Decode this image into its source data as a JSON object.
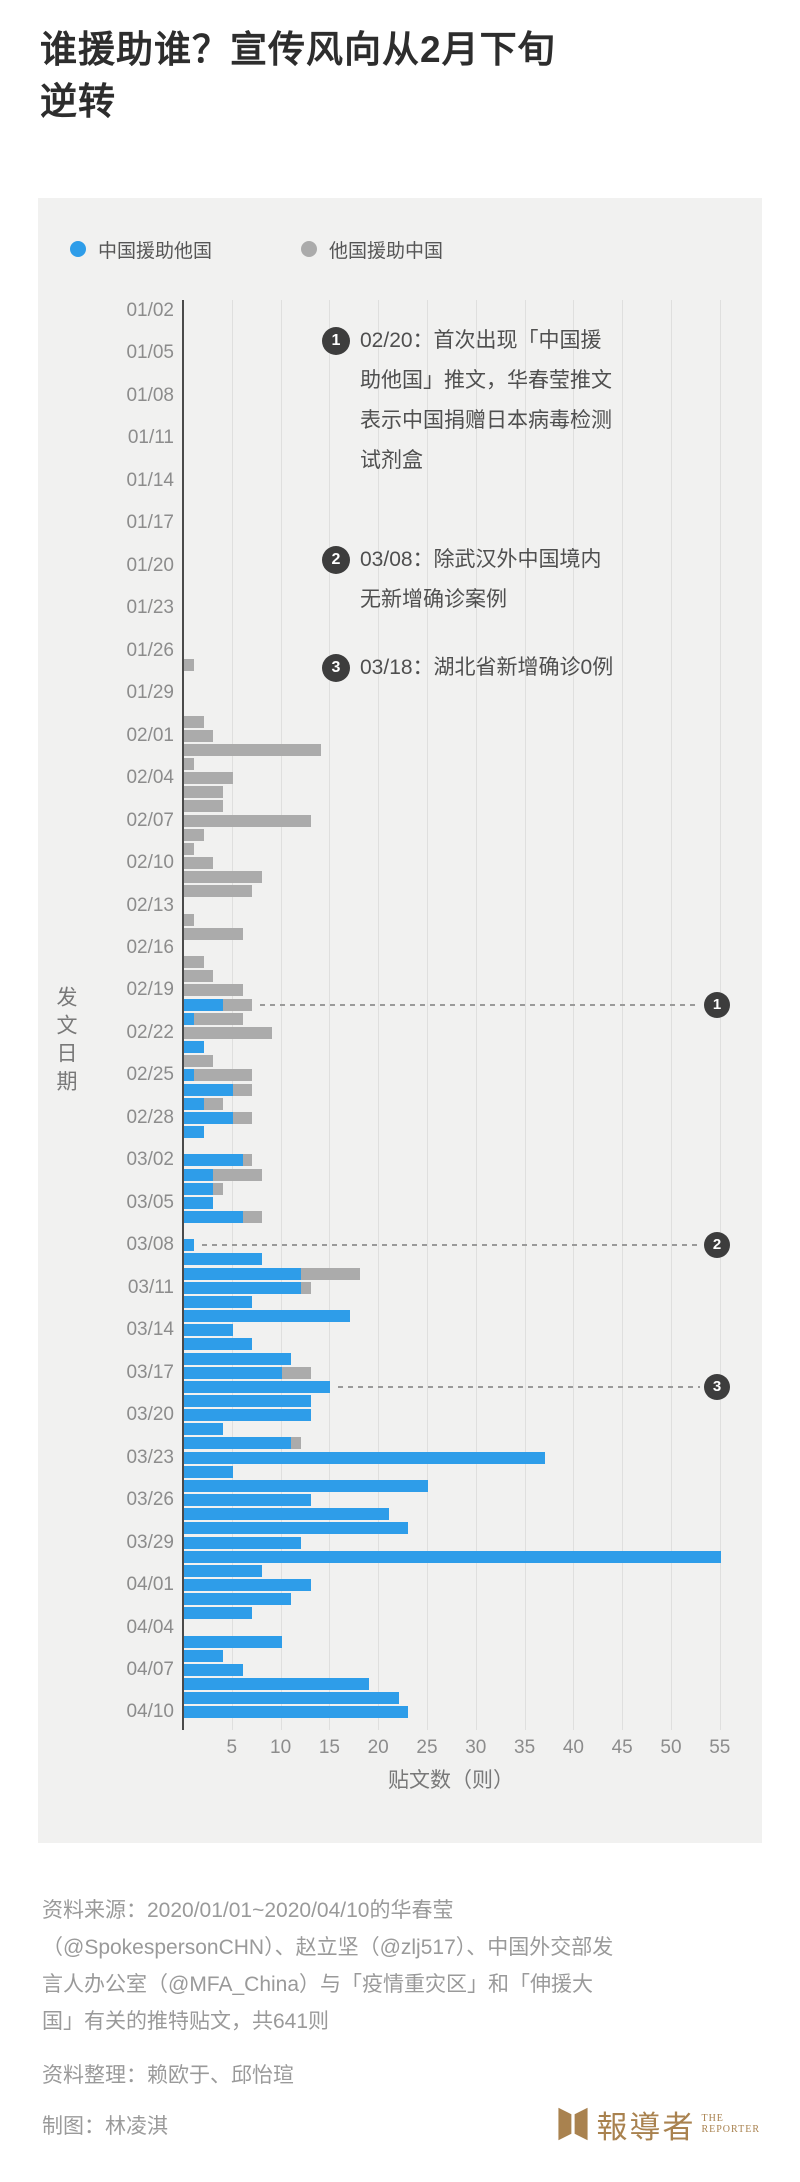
{
  "title_lines": [
    "谁援助谁？宣传风向从2月下旬",
    "逆转"
  ],
  "legend": {
    "items": [
      {
        "label": "中国援助他国",
        "color": "#2e9de9"
      },
      {
        "label": "他国援助中国",
        "color": "#ababab"
      }
    ]
  },
  "chart_data": {
    "type": "bar",
    "orientation": "horizontal",
    "stacked": true,
    "title": "谁援助谁？宣传风向从2月下旬逆转",
    "xlabel": "贴文数（则）",
    "ylabel": "发文日期",
    "xlim": [
      0,
      57
    ],
    "xticks": [
      5,
      10,
      15,
      20,
      25,
      30,
      35,
      40,
      45,
      50,
      55
    ],
    "ytick_every_days": 3,
    "grid": true,
    "total_posts": 641,
    "series": [
      {
        "name": "中国援助他国",
        "color": "#2e9de9"
      },
      {
        "name": "他国援助中国",
        "color": "#ababab"
      }
    ],
    "rows": [
      [
        "01/02",
        0,
        0
      ],
      [
        "01/03",
        0,
        0
      ],
      [
        "01/04",
        0,
        0
      ],
      [
        "01/05",
        0,
        0
      ],
      [
        "01/06",
        0,
        0
      ],
      [
        "01/07",
        0,
        0
      ],
      [
        "01/08",
        0,
        0
      ],
      [
        "01/09",
        0,
        0
      ],
      [
        "01/10",
        0,
        0
      ],
      [
        "01/11",
        0,
        0
      ],
      [
        "01/12",
        0,
        0
      ],
      [
        "01/13",
        0,
        0
      ],
      [
        "01/14",
        0,
        0
      ],
      [
        "01/15",
        0,
        0
      ],
      [
        "01/16",
        0,
        0
      ],
      [
        "01/17",
        0,
        0
      ],
      [
        "01/18",
        0,
        0
      ],
      [
        "01/19",
        0,
        0
      ],
      [
        "01/20",
        0,
        0
      ],
      [
        "01/21",
        0,
        0
      ],
      [
        "01/22",
        0,
        0
      ],
      [
        "01/23",
        0,
        0
      ],
      [
        "01/24",
        0,
        0
      ],
      [
        "01/25",
        0,
        0
      ],
      [
        "01/26",
        0,
        0
      ],
      [
        "01/27",
        0,
        1
      ],
      [
        "01/28",
        0,
        0
      ],
      [
        "01/29",
        0,
        0
      ],
      [
        "01/30",
        0,
        0
      ],
      [
        "01/31",
        0,
        2
      ],
      [
        "02/01",
        0,
        3
      ],
      [
        "02/02",
        0,
        14
      ],
      [
        "02/03",
        0,
        1
      ],
      [
        "02/04",
        0,
        5
      ],
      [
        "02/05",
        0,
        4
      ],
      [
        "02/06",
        0,
        4
      ],
      [
        "02/07",
        0,
        13
      ],
      [
        "02/08",
        0,
        2
      ],
      [
        "02/09",
        0,
        1
      ],
      [
        "02/10",
        0,
        3
      ],
      [
        "02/11",
        0,
        8
      ],
      [
        "02/12",
        0,
        7
      ],
      [
        "02/13",
        0,
        0
      ],
      [
        "02/14",
        0,
        1
      ],
      [
        "02/15",
        0,
        6
      ],
      [
        "02/16",
        0,
        0
      ],
      [
        "02/17",
        0,
        2
      ],
      [
        "02/18",
        0,
        3
      ],
      [
        "02/19",
        0,
        6
      ],
      [
        "02/20",
        4,
        3
      ],
      [
        "02/21",
        1,
        5
      ],
      [
        "02/22",
        0,
        9
      ],
      [
        "02/23",
        2,
        0
      ],
      [
        "02/24",
        0,
        3
      ],
      [
        "02/25",
        1,
        6
      ],
      [
        "02/26",
        5,
        2
      ],
      [
        "02/27",
        2,
        2
      ],
      [
        "02/28",
        5,
        2
      ],
      [
        "02/29",
        2,
        0
      ],
      [
        "03/01",
        0,
        0
      ],
      [
        "03/02",
        6,
        1
      ],
      [
        "03/03",
        3,
        5
      ],
      [
        "03/04",
        3,
        1
      ],
      [
        "03/05",
        3,
        0
      ],
      [
        "03/06",
        6,
        2
      ],
      [
        "03/07",
        0,
        0
      ],
      [
        "03/08",
        1,
        0
      ],
      [
        "03/09",
        8,
        0
      ],
      [
        "03/10",
        12,
        6
      ],
      [
        "03/11",
        12,
        1
      ],
      [
        "03/12",
        7,
        0
      ],
      [
        "03/13",
        17,
        0
      ],
      [
        "03/14",
        5,
        0
      ],
      [
        "03/15",
        7,
        0
      ],
      [
        "03/16",
        11,
        0
      ],
      [
        "03/17",
        10,
        3
      ],
      [
        "03/18",
        15,
        0
      ],
      [
        "03/19",
        13,
        0
      ],
      [
        "03/20",
        13,
        0
      ],
      [
        "03/21",
        4,
        0
      ],
      [
        "03/22",
        11,
        1
      ],
      [
        "03/23",
        37,
        0
      ],
      [
        "03/24",
        5,
        0
      ],
      [
        "03/25",
        25,
        0
      ],
      [
        "03/26",
        13,
        0
      ],
      [
        "03/27",
        21,
        0
      ],
      [
        "03/28",
        23,
        0
      ],
      [
        "03/29",
        12,
        0
      ],
      [
        "03/30",
        55,
        0
      ],
      [
        "03/31",
        8,
        0
      ],
      [
        "04/01",
        13,
        0
      ],
      [
        "04/02",
        11,
        0
      ],
      [
        "04/03",
        7,
        0
      ],
      [
        "04/04",
        0,
        0
      ],
      [
        "04/05",
        10,
        0
      ],
      [
        "04/06",
        4,
        0
      ],
      [
        "04/07",
        6,
        0
      ],
      [
        "04/08",
        19,
        0
      ],
      [
        "04/09",
        22,
        0
      ],
      [
        "04/10",
        23,
        0
      ]
    ]
  },
  "annotations": [
    {
      "num": "1",
      "date": "02/20",
      "text": "02/20：首次出现「中国援\n助他国」推文，华春莹推文\n表示中国捐赠日本病毒检测\n试剂盒"
    },
    {
      "num": "2",
      "date": "03/08",
      "text": "03/08：除武汉外中国境内\n无新增确诊案例"
    },
    {
      "num": "3",
      "date": "03/18",
      "text": "03/18：湖北省新增确诊0例"
    }
  ],
  "footer": {
    "source": "资料来源：2020/01/01~2020/04/10的华春莹\n（@SpokespersonCHN）、赵立坚（@zlj517）、中国外交部发\n言人办公室（@MFA_China）与「疫情重灾区」和「伸援大\n国」有关的推特贴文，共641则",
    "credits": "资料整理：赖欧于、邱怡瑄",
    "maker": "制图：林凌淇"
  },
  "logo": {
    "zh": "報導者",
    "en_line1": "THE",
    "en_line2": "REPORTER",
    "color": "#a9824f"
  },
  "colors": {
    "page_bg": "#ffffff",
    "panel_bg": "#f1f1f0",
    "title": "#2d2d2d",
    "grid": "#dfdfde",
    "axis": "#4a4a4a",
    "tick_text": "#8c8c8c",
    "annotation_text": "#4f4f4f",
    "badge": "#3d3d3d",
    "dashed_line": "#9a9a9a",
    "footer_text": "#9a9a9a"
  }
}
